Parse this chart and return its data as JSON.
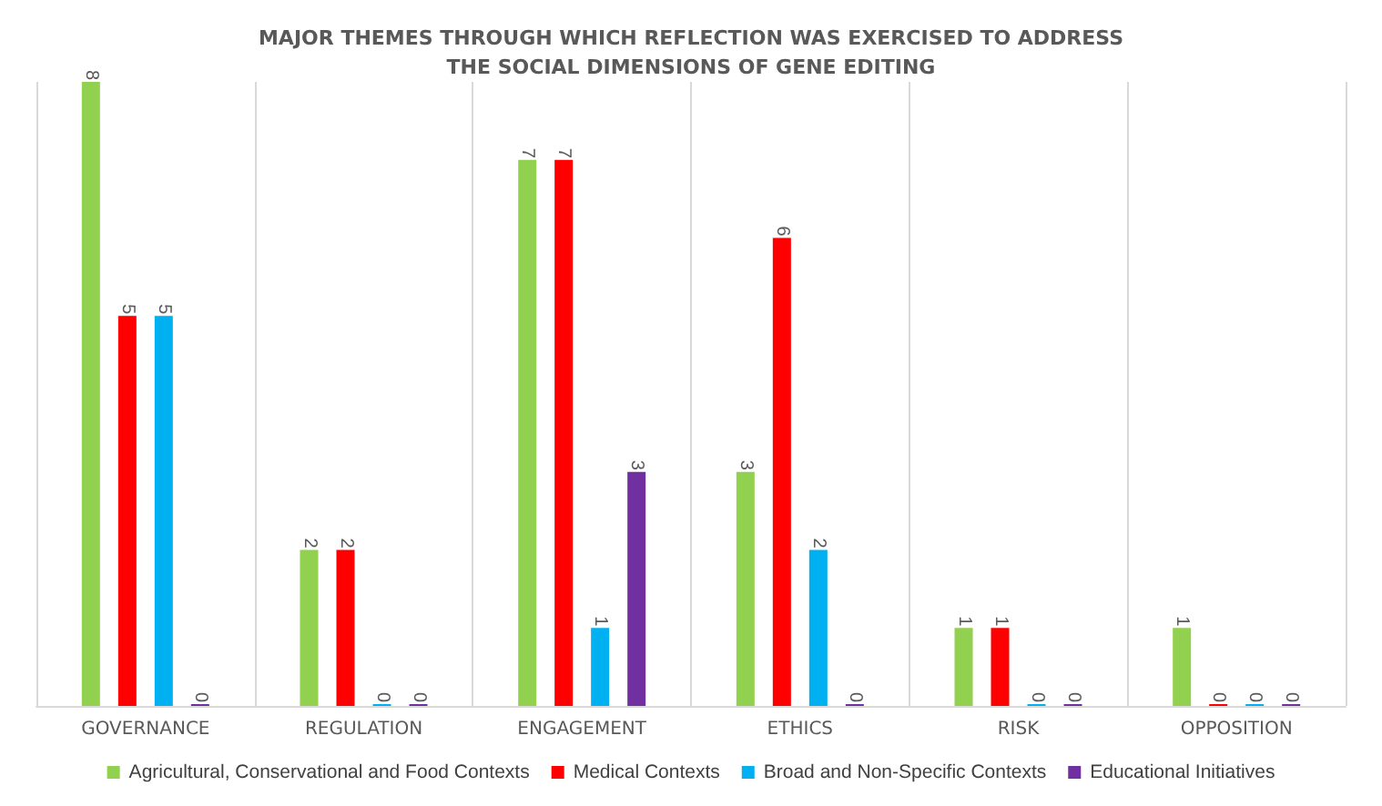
{
  "chart_data": {
    "type": "bar",
    "title": "MAJOR THEMES THROUGH WHICH REFLECTION WAS EXERCISED TO ADDRESS\nTHE SOCIAL DIMENSIONS OF GENE EDITING",
    "categories": [
      "GOVERNANCE",
      "REGULATION",
      "ENGAGEMENT",
      "ETHICS",
      "RISK",
      "OPPOSITION"
    ],
    "series": [
      {
        "name": "Agricultural, Conservational and Food Contexts",
        "color": "#92d050",
        "values": [
          8,
          2,
          7,
          3,
          1,
          1
        ]
      },
      {
        "name": "Medical Contexts",
        "color": "#ff0000",
        "values": [
          5,
          2,
          7,
          6,
          1,
          0
        ]
      },
      {
        "name": "Broad and Non-Specific Contexts",
        "color": "#00b0f0",
        "values": [
          5,
          0,
          1,
          2,
          0,
          0
        ]
      },
      {
        "name": "Educational Initiatives",
        "color": "#7030a0",
        "values": [
          0,
          0,
          3,
          0,
          0,
          0
        ]
      }
    ],
    "data_labels": true,
    "grid": "x",
    "legend": "bottom",
    "tick_labels": "x"
  }
}
